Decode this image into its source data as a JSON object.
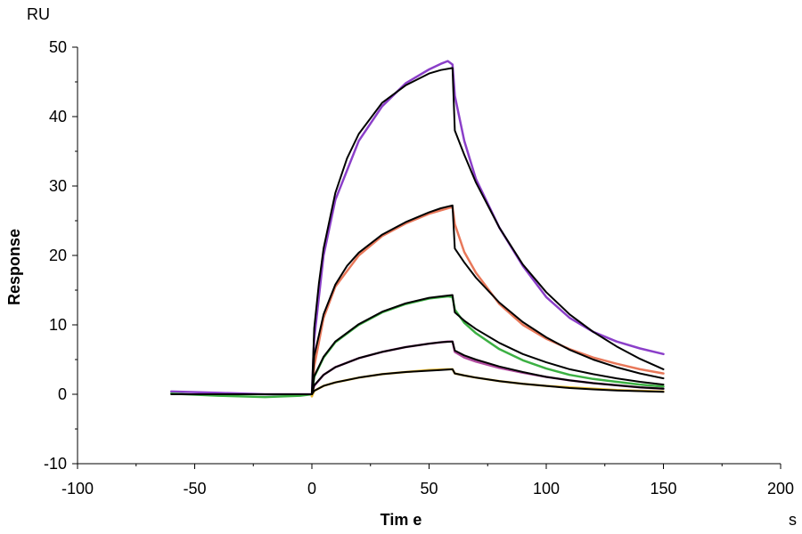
{
  "chart_data": {
    "type": "line",
    "title": "",
    "xlabel": "Tim e",
    "ylabel": "Response",
    "x_unit": "s",
    "y_unit": "RU",
    "xlim": [
      -100,
      200
    ],
    "ylim": [
      -10,
      50
    ],
    "x_ticks": [
      -100,
      -50,
      0,
      50,
      100,
      150,
      200
    ],
    "y_ticks": [
      -10,
      0,
      10,
      20,
      30,
      40,
      50
    ],
    "grid": false,
    "legend": "none",
    "x_tick_labels": [
      "-100",
      "-50",
      "0",
      "50",
      "100",
      "150",
      "200"
    ],
    "y_tick_labels": [
      "-10",
      "0",
      "10",
      "20",
      "30",
      "40",
      "50"
    ],
    "series": [
      {
        "kind": "measured",
        "color": "#8B3FC9",
        "x": [
          -60,
          -40,
          -20,
          -5,
          0,
          1,
          5,
          10,
          20,
          30,
          40,
          50,
          55,
          58,
          60,
          61,
          65,
          70,
          80,
          90,
          100,
          110,
          120,
          130,
          140,
          150
        ],
        "y": [
          0.4,
          0.2,
          0.0,
          0.0,
          0.0,
          8.0,
          20.0,
          28.0,
          36.5,
          41.5,
          44.8,
          46.8,
          47.6,
          48.0,
          47.5,
          43.0,
          36.5,
          31.0,
          24.0,
          18.5,
          14.0,
          11.0,
          9.0,
          7.6,
          6.6,
          5.8
        ]
      },
      {
        "kind": "measured",
        "color": "#E8785A",
        "x": [
          0,
          1,
          5,
          10,
          20,
          30,
          40,
          50,
          58,
          60,
          61,
          65,
          70,
          80,
          90,
          100,
          110,
          120,
          130,
          140,
          150
        ],
        "y": [
          -0.3,
          4.0,
          11.0,
          15.5,
          20.0,
          22.8,
          24.6,
          26.0,
          26.8,
          27.0,
          24.5,
          20.5,
          17.5,
          13.0,
          10.0,
          8.0,
          6.5,
          5.3,
          4.4,
          3.6,
          3.0
        ]
      },
      {
        "kind": "measured",
        "color": "#3CB043",
        "x": [
          -60,
          -40,
          -20,
          -5,
          0,
          1,
          5,
          10,
          20,
          30,
          40,
          50,
          58,
          60,
          61,
          65,
          70,
          80,
          90,
          100,
          110,
          120,
          130,
          140,
          150
        ],
        "y": [
          0.1,
          -0.2,
          -0.4,
          -0.2,
          0.0,
          2.5,
          5.3,
          7.5,
          10.0,
          11.8,
          13.0,
          13.8,
          14.1,
          14.0,
          12.2,
          10.3,
          8.8,
          6.5,
          4.9,
          3.7,
          2.8,
          2.2,
          1.8,
          1.4,
          1.1
        ]
      },
      {
        "kind": "measured",
        "color": "#B04A9E",
        "x": [
          0,
          1,
          5,
          10,
          20,
          30,
          40,
          50,
          58,
          60,
          61,
          65,
          70,
          80,
          90,
          100,
          110,
          120,
          130,
          140,
          150
        ],
        "y": [
          0.0,
          1.2,
          2.8,
          3.9,
          5.2,
          6.1,
          6.8,
          7.3,
          7.6,
          7.6,
          6.1,
          5.3,
          4.7,
          3.8,
          3.1,
          2.5,
          2.0,
          1.6,
          1.3,
          1.0,
          0.8
        ]
      },
      {
        "kind": "measured",
        "color": "#E6B830",
        "x": [
          0,
          1,
          5,
          10,
          20,
          30,
          40,
          50,
          58,
          60,
          61,
          65,
          70,
          80,
          90,
          100,
          110,
          120,
          130,
          140,
          150
        ],
        "y": [
          -0.3,
          0.5,
          1.2,
          1.7,
          2.4,
          2.9,
          3.2,
          3.5,
          3.6,
          3.6,
          3.0,
          2.7,
          2.4,
          1.9,
          1.5,
          1.2,
          1.0,
          0.8,
          0.6,
          0.5,
          0.4
        ]
      },
      {
        "kind": "fit",
        "color": "#000000",
        "x": [
          -60,
          -40,
          -20,
          -5,
          0,
          1,
          3,
          5,
          10,
          15,
          20,
          30,
          40,
          50,
          55,
          60,
          61,
          65,
          70,
          80,
          90,
          100,
          110,
          120,
          130,
          140,
          150
        ],
        "y": [
          0.0,
          0.0,
          0.0,
          0.0,
          0.0,
          9.5,
          16.0,
          21.0,
          29.0,
          34.0,
          37.5,
          42.0,
          44.5,
          46.2,
          46.7,
          47.0,
          38.0,
          34.5,
          30.5,
          24.0,
          18.7,
          14.7,
          11.5,
          9.0,
          6.9,
          5.1,
          3.6
        ]
      },
      {
        "kind": "fit",
        "color": "#000000",
        "x": [
          0,
          1,
          5,
          10,
          15,
          20,
          30,
          40,
          50,
          55,
          60,
          61,
          65,
          70,
          80,
          90,
          100,
          110,
          120,
          130,
          140,
          150
        ],
        "y": [
          0.0,
          5.5,
          11.5,
          15.8,
          18.5,
          20.4,
          23.0,
          24.8,
          26.2,
          26.8,
          27.2,
          21.0,
          19.0,
          16.8,
          13.2,
          10.4,
          8.2,
          6.4,
          5.0,
          3.9,
          3.0,
          2.3
        ]
      },
      {
        "kind": "fit",
        "color": "#000000",
        "x": [
          0,
          1,
          5,
          10,
          20,
          30,
          40,
          50,
          55,
          60,
          61,
          65,
          70,
          80,
          90,
          100,
          110,
          120,
          130,
          140,
          150
        ],
        "y": [
          0.0,
          2.6,
          5.4,
          7.6,
          10.1,
          11.9,
          13.1,
          13.9,
          14.1,
          14.3,
          11.8,
          10.6,
          9.4,
          7.4,
          5.8,
          4.6,
          3.6,
          2.9,
          2.3,
          1.8,
          1.4
        ]
      },
      {
        "kind": "fit",
        "color": "#000000",
        "x": [
          0,
          1,
          5,
          10,
          20,
          30,
          40,
          50,
          55,
          60,
          61,
          65,
          70,
          80,
          90,
          100,
          110,
          120,
          130,
          140,
          150
        ],
        "y": [
          0.0,
          1.3,
          2.8,
          3.9,
          5.2,
          6.1,
          6.8,
          7.3,
          7.5,
          7.6,
          6.3,
          5.6,
          5.0,
          4.0,
          3.2,
          2.5,
          2.0,
          1.6,
          1.3,
          1.0,
          0.8
        ]
      },
      {
        "kind": "fit",
        "color": "#000000",
        "x": [
          0,
          1,
          5,
          10,
          20,
          30,
          40,
          50,
          55,
          60,
          61,
          65,
          70,
          80,
          90,
          100,
          110,
          120,
          130,
          140,
          150
        ],
        "y": [
          0.0,
          0.5,
          1.2,
          1.7,
          2.4,
          2.9,
          3.2,
          3.4,
          3.5,
          3.6,
          3.0,
          2.7,
          2.4,
          1.9,
          1.5,
          1.2,
          0.9,
          0.7,
          0.55,
          0.45,
          0.35
        ]
      }
    ]
  }
}
